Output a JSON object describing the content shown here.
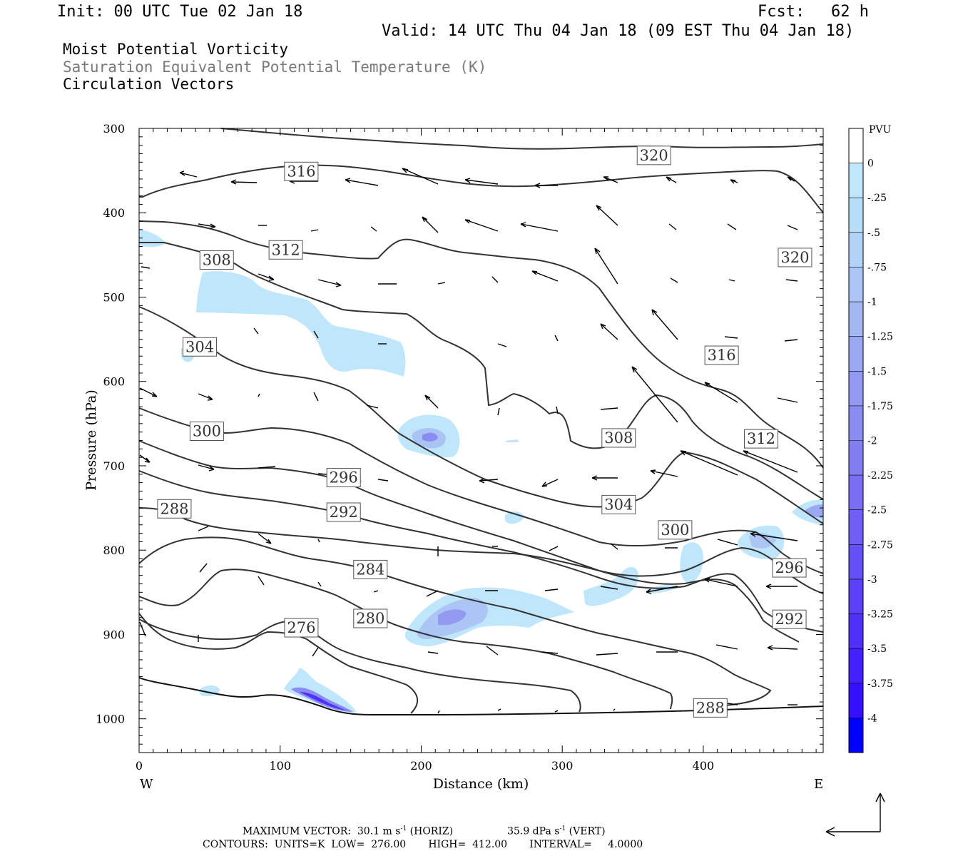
{
  "header": {
    "init": "Init: 00 UTC Tue 02 Jan 18",
    "fcst_label": "Fcst:",
    "fcst_value": "62 h",
    "valid": "Valid: 14 UTC Thu 04 Jan 18 (09 EST Thu 04 Jan 18)",
    "field1": "Moist Potential Vorticity",
    "field2": "Saturation Equivalent Potential Temperature (K)",
    "field3": "Circulation Vectors"
  },
  "footer": {
    "line1_a": "MAXIMUM VECTOR:  30.1 m s",
    "line1_b": " (HORIZ)",
    "line1_c": "35.9 dPa s",
    "line1_d": " (VERT)",
    "sup": "-1",
    "line2": "CONTOURS:  UNITS=K  LOW=  276.00       HIGH=  412.00       INTERVAL=     4.0000"
  },
  "colors": {
    "contour": "#333333",
    "vector": "#000000",
    "axis": "#000000"
  },
  "chart_data": {
    "type": "contour",
    "xlabel": "Distance (km)",
    "ylabel": "Pressure (hPa)",
    "x_ticks": [
      "0",
      "100",
      "200",
      "300",
      "400"
    ],
    "x_tick_values": [
      0,
      100,
      200,
      300,
      400
    ],
    "y_ticks": [
      "300",
      "400",
      "500",
      "600",
      "700",
      "800",
      "900",
      "1000"
    ],
    "y_tick_values": [
      300,
      400,
      500,
      600,
      700,
      800,
      900,
      1000
    ],
    "xlim": [
      0,
      485
    ],
    "ylim": [
      300,
      1040
    ],
    "y_direction": "pressure increasing downward",
    "west_label": "W",
    "east_label": "E",
    "colorbar": {
      "title": "PVU",
      "labels": [
        "0",
        "-.25",
        "-.5",
        "-.75",
        "-1",
        "-1.25",
        "-1.5",
        "-1.75",
        "-2",
        "-2.25",
        "-2.5",
        "-2.75",
        "-3",
        "-3.25",
        "-3.5",
        "-3.75",
        "-4"
      ],
      "colors": [
        "#ffffff",
        "#bfe6fa",
        "#b9def8",
        "#b2d2f6",
        "#abc6f4",
        "#a3b8f3",
        "#9aa9f2",
        "#929bf1",
        "#8a8cf1",
        "#827ef2",
        "#7a6ff3",
        "#6f5ff4",
        "#6550f5",
        "#5a40f7",
        "#4f30f9",
        "#4420fb",
        "#3510fc",
        "#0000ff"
      ]
    },
    "contour_labels": [
      {
        "value": "320",
        "x": 365,
        "p": 332
      },
      {
        "value": "316",
        "x": 115,
        "p": 351
      },
      {
        "value": "320",
        "x": 465,
        "p": 453
      },
      {
        "value": "312",
        "x": 104,
        "p": 444
      },
      {
        "value": "308",
        "x": 55,
        "p": 456
      },
      {
        "value": "304",
        "x": 43,
        "p": 559
      },
      {
        "value": "316",
        "x": 413,
        "p": 569
      },
      {
        "value": "300",
        "x": 48,
        "p": 659
      },
      {
        "value": "308",
        "x": 340,
        "p": 667
      },
      {
        "value": "312",
        "x": 441,
        "p": 668
      },
      {
        "value": "296",
        "x": 145,
        "p": 714
      },
      {
        "value": "304",
        "x": 340,
        "p": 746
      },
      {
        "value": "288",
        "x": 25,
        "p": 751
      },
      {
        "value": "292",
        "x": 145,
        "p": 755
      },
      {
        "value": "300",
        "x": 380,
        "p": 776
      },
      {
        "value": "284",
        "x": 164,
        "p": 823
      },
      {
        "value": "296",
        "x": 461,
        "p": 821
      },
      {
        "value": "280",
        "x": 164,
        "p": 881
      },
      {
        "value": "292",
        "x": 461,
        "p": 882
      },
      {
        "value": "276",
        "x": 115,
        "p": 892
      },
      {
        "value": "288",
        "x": 405,
        "p": 987
      }
    ],
    "max_vector_horiz": "30.1 m s-1",
    "max_vector_vert": "35.9 dPa s-1"
  }
}
